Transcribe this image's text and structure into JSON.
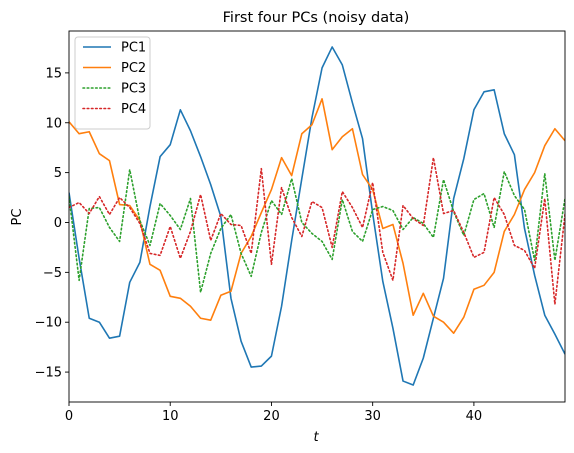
{
  "chart_data": {
    "type": "line",
    "title": "First four PCs (noisy data)",
    "xlabel": "t",
    "ylabel": "PC",
    "xlim": [
      0,
      49
    ],
    "ylim": [
      -18,
      19.2
    ],
    "xticks": [
      0,
      10,
      20,
      30,
      40
    ],
    "yticks": [
      -15,
      -10,
      -5,
      0,
      5,
      10,
      15
    ],
    "grid": false,
    "legend_position": "top-left",
    "x": [
      0,
      1,
      2,
      3,
      4,
      5,
      6,
      7,
      8,
      9,
      10,
      11,
      12,
      13,
      14,
      15,
      16,
      17,
      18,
      19,
      20,
      21,
      22,
      23,
      24,
      25,
      26,
      27,
      28,
      29,
      30,
      31,
      32,
      33,
      34,
      35,
      36,
      37,
      38,
      39,
      40,
      41,
      42,
      43,
      44,
      45,
      46,
      47,
      48,
      49
    ],
    "series": [
      {
        "name": "PC1",
        "color": "#1f77b4",
        "style": "solid",
        "values": [
          3.0,
          -3.6,
          -9.6,
          -10.0,
          -11.6,
          -11.4,
          -6.0,
          -4.0,
          1.6,
          6.6,
          7.8,
          11.3,
          9.2,
          6.6,
          3.8,
          0.6,
          -7.6,
          -11.9,
          -14.5,
          -14.4,
          -13.4,
          -8.4,
          -1.8,
          4.4,
          10.5,
          15.5,
          17.6,
          15.8,
          12.0,
          8.4,
          0.9,
          -5.9,
          -10.6,
          -15.9,
          -16.3,
          -13.6,
          -9.6,
          -5.6,
          2.4,
          6.4,
          11.3,
          13.1,
          13.3,
          8.9,
          6.8,
          -0.6,
          -5.3,
          -9.3,
          -11.2,
          -13.2
        ]
      },
      {
        "name": "PC2",
        "color": "#ff7f0e",
        "style": "solid",
        "values": [
          10.1,
          8.9,
          9.1,
          6.9,
          6.2,
          1.8,
          1.7,
          0.2,
          -4.2,
          -4.8,
          -7.4,
          -7.6,
          -8.4,
          -9.6,
          -9.8,
          -7.3,
          -6.9,
          -3.1,
          -1.4,
          1.0,
          3.3,
          6.5,
          4.7,
          8.9,
          9.8,
          12.4,
          7.3,
          8.6,
          9.4,
          4.8,
          3.3,
          -0.6,
          -0.2,
          -4.1,
          -9.3,
          -7.1,
          -9.4,
          -10.0,
          -11.1,
          -9.5,
          -6.7,
          -6.3,
          -5.0,
          -0.9,
          0.8,
          3.3,
          5.0,
          7.7,
          9.4,
          8.2
        ]
      },
      {
        "name": "PC3",
        "color": "#2ca02c",
        "style": "dotted",
        "values": [
          2.6,
          -5.8,
          1.4,
          1.5,
          -0.5,
          -1.9,
          5.3,
          0.2,
          -2.3,
          1.9,
          0.7,
          -0.7,
          2.4,
          -7.0,
          -3.1,
          -0.6,
          0.8,
          -3.1,
          -5.4,
          -1.0,
          2.2,
          0.8,
          4.4,
          0.0,
          -1.1,
          -1.9,
          -3.7,
          2.3,
          -0.9,
          -1.9,
          1.3,
          1.6,
          1.2,
          -0.7,
          0.5,
          -0.1,
          -1.5,
          4.3,
          1.1,
          -1.3,
          2.3,
          2.9,
          -0.5,
          5.1,
          2.7,
          1.3,
          -3.8,
          4.9,
          -3.8,
          2.4
        ]
      },
      {
        "name": "PC4",
        "color": "#d62728",
        "style": "dotted",
        "values": [
          1.5,
          2.0,
          0.9,
          2.6,
          0.8,
          2.5,
          1.5,
          -0.1,
          -3.1,
          -3.3,
          -0.4,
          -3.6,
          -0.9,
          2.8,
          -1.8,
          0.9,
          -0.2,
          -0.3,
          -3.1,
          5.4,
          -4.2,
          3.5,
          0.5,
          -1.4,
          2.1,
          1.5,
          -2.5,
          3.1,
          1.5,
          -0.5,
          4.0,
          -3.0,
          -5.8,
          1.7,
          0.4,
          -0.3,
          6.5,
          0.9,
          1.2,
          -1.0,
          -3.5,
          -3.0,
          2.5,
          0.8,
          -2.3,
          -2.8,
          -4.6,
          2.4,
          -8.2,
          0.8
        ]
      }
    ]
  }
}
